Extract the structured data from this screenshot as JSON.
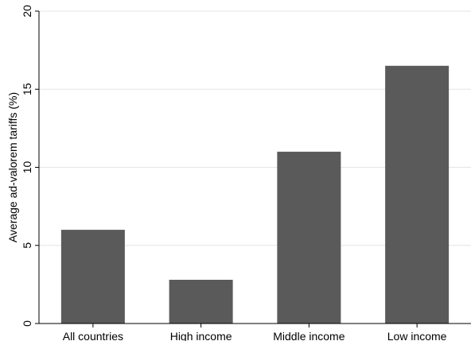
{
  "chart_data": {
    "type": "bar",
    "title": "",
    "xlabel": "",
    "ylabel": "Average ad-valorem tariffs (%)",
    "categories": [
      "All countries",
      "High income",
      "Middle income",
      "Low income"
    ],
    "values": [
      6.0,
      2.8,
      11.0,
      16.5
    ],
    "ylim": [
      0,
      20
    ],
    "yticks": [
      "0",
      "5",
      "10",
      "15",
      "20"
    ],
    "grid": true,
    "legend": "none",
    "colors": {
      "bar": "#5a5a5a",
      "grid": "#e6e6e6",
      "axis": "#000000"
    }
  }
}
